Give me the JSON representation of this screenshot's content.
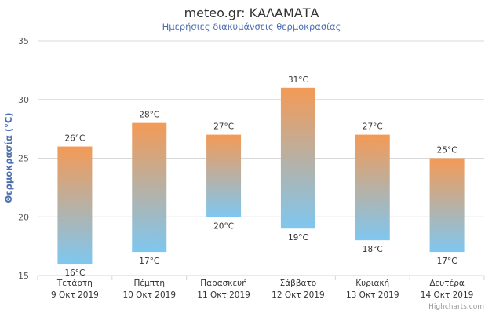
{
  "chart_data": {
    "type": "columnrange",
    "title": "meteo.gr: ΚΑΛΑΜΑΤΑ",
    "subtitle": "Ημερήσιες διακυμάνσεις θερμοκρασίας",
    "ylabel": "Θερμοκρασία (°C)",
    "ylim": [
      15,
      35
    ],
    "yticks": [
      15,
      20,
      25,
      30,
      35
    ],
    "grid": true,
    "unit": "°C",
    "categories": [
      [
        "Τετάρτη",
        "9 Οκτ 2019"
      ],
      [
        "Πέμπτη",
        "10 Οκτ 2019"
      ],
      [
        "Παρασκευή",
        "11 Οκτ 2019"
      ],
      [
        "Σάββατο",
        "12 Οκτ 2019"
      ],
      [
        "Κυριακή",
        "13 Οκτ 2019"
      ],
      [
        "Δευτέρα",
        "14 Οκτ 2019"
      ]
    ],
    "low": [
      16,
      17,
      20,
      19,
      18,
      17
    ],
    "high": [
      26,
      28,
      27,
      31,
      27,
      25
    ],
    "colors": {
      "top": "#f39a56",
      "bottom": "#7ec7f0",
      "grid": "#d8d8d8",
      "axis": "#ccd6eb"
    },
    "credits": "Highcharts.com"
  }
}
